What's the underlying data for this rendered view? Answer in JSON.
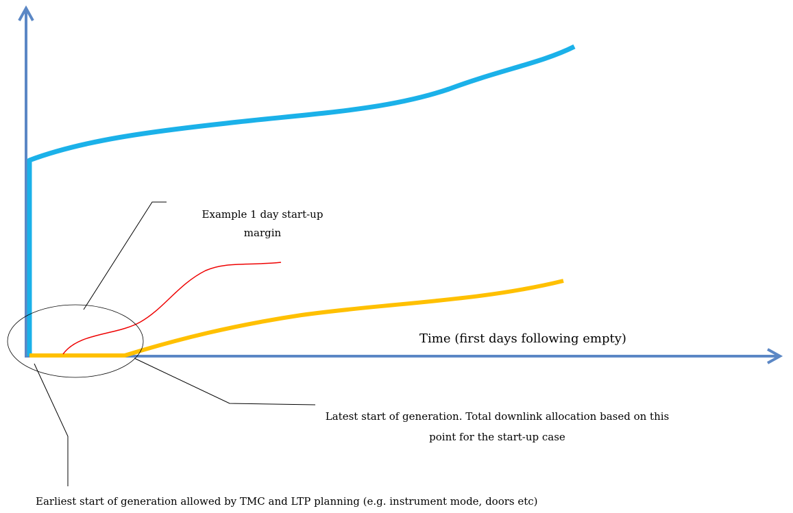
{
  "colors": {
    "axis": "#5b87c5",
    "upper_curve": "#1bb1e9",
    "lower_curve": "#ffc000",
    "margin_curve": "#ee0000",
    "leader": "#000000"
  },
  "labels": {
    "time_axis": "Time (first days following empty)",
    "margin": "Example 1 day start-up margin",
    "latest_start": "Latest start of generation. Total downlink allocation based on this point for the start-up case",
    "earliest_start": "Earliest start of generation allowed by TMC and LTP planning (e.g. instrument mode, doors etc)"
  }
}
